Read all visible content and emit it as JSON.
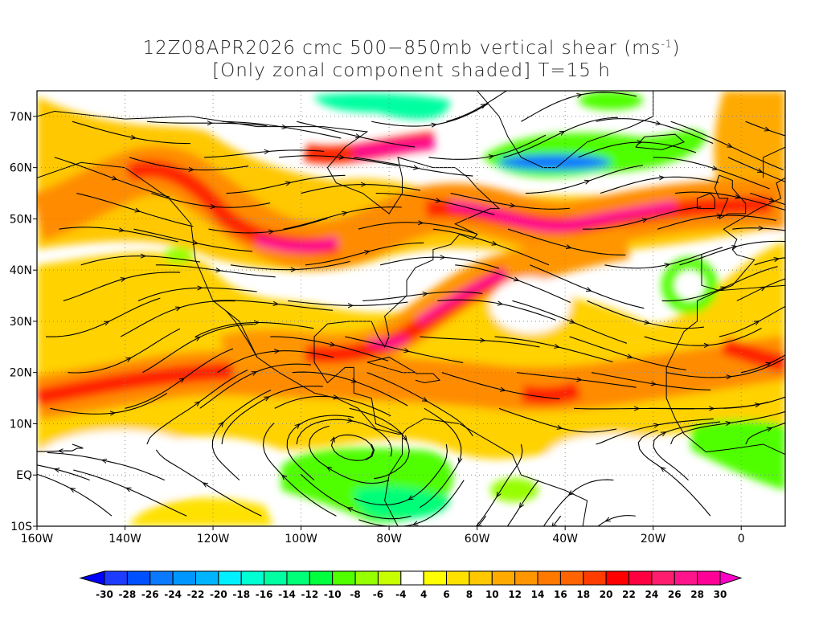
{
  "title": {
    "line1": "12Z08APR2026 cmc 500−850mb vertical shear (ms",
    "line1_sup": "-1",
    "line1_end": ")",
    "line2": "[Only zonal component shaded] T=15 h"
  },
  "axes": {
    "x_labels": [
      "160W",
      "140W",
      "120W",
      "100W",
      "80W",
      "60W",
      "40W",
      "20W",
      "0"
    ],
    "y_labels": [
      "10S",
      "EQ",
      "10N",
      "20N",
      "30N",
      "40N",
      "50N",
      "60N",
      "70N"
    ]
  },
  "colorbar": {
    "labels": [
      "-30",
      "-28",
      "-26",
      "-24",
      "-22",
      "-20",
      "-18",
      "-16",
      "-14",
      "-12",
      "-10",
      "-8",
      "-6",
      "-4",
      "4",
      "6",
      "8",
      "10",
      "12",
      "14",
      "16",
      "18",
      "20",
      "22",
      "24",
      "26",
      "28",
      "30"
    ],
    "colors": [
      "#1e3cff",
      "#0050ff",
      "#0a78ff",
      "#0096ff",
      "#00b4ff",
      "#00f0ff",
      "#00ffd2",
      "#00ffa0",
      "#00ff78",
      "#00ff3c",
      "#50ff00",
      "#96ff00",
      "#c8ff00",
      "#ffffff",
      "#ffff00",
      "#ffe100",
      "#ffc800",
      "#ffaa00",
      "#ff9600",
      "#ff7800",
      "#ff6400",
      "#ff3c00",
      "#ff0000",
      "#ff0040",
      "#ff1e6e",
      "#ff148c",
      "#ff0096"
    ],
    "under_color": "#0000ff",
    "over_color": "#ff00c8"
  }
}
